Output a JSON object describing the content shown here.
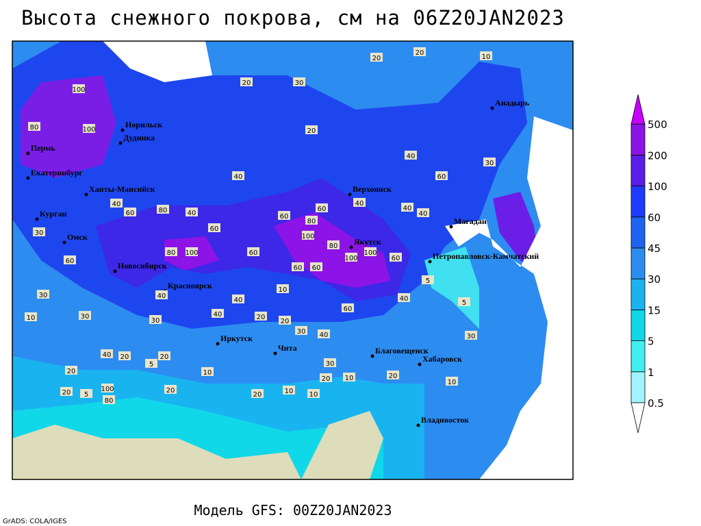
{
  "header": {
    "title": "Высота снежного покрова, см на 06Z20JAN2023"
  },
  "footer": {
    "model": "Модель GFS: 00Z20JAN2023",
    "credit": "GrADS: COLA/IGES"
  },
  "legend": {
    "levels": [
      0.5,
      1,
      5,
      15,
      30,
      45,
      60,
      100,
      200,
      500
    ]
  },
  "cities": [
    "Норильск",
    "Дудинка",
    "Пермь",
    "Екатеринбург",
    "Ханты-Мансийск",
    "Курган",
    "Омск",
    "Новосибирск",
    "Красноярск",
    "Иркутск",
    "Чита",
    "Благовещенск",
    "Хабаровск",
    "Владивосток",
    "Верхоянск",
    "Якутск",
    "Магадан",
    "Петропавловск-Камчатский",
    "Анадырь"
  ],
  "contour_labels": [
    20,
    20,
    10,
    30,
    20,
    20,
    100,
    100,
    80,
    40,
    30,
    60,
    40,
    40,
    40,
    60,
    60,
    80,
    100,
    80,
    100,
    100,
    60,
    60,
    60,
    60,
    60,
    100,
    80,
    40,
    60,
    80,
    40,
    40,
    30,
    60,
    30,
    30,
    10,
    40,
    30,
    40,
    40,
    20,
    20,
    30,
    40,
    60,
    40,
    10,
    10,
    20,
    10,
    10,
    20,
    10,
    30,
    20,
    10,
    40,
    20,
    20,
    20,
    5,
    100,
    80,
    20,
    5,
    20,
    5,
    5,
    30
  ]
}
